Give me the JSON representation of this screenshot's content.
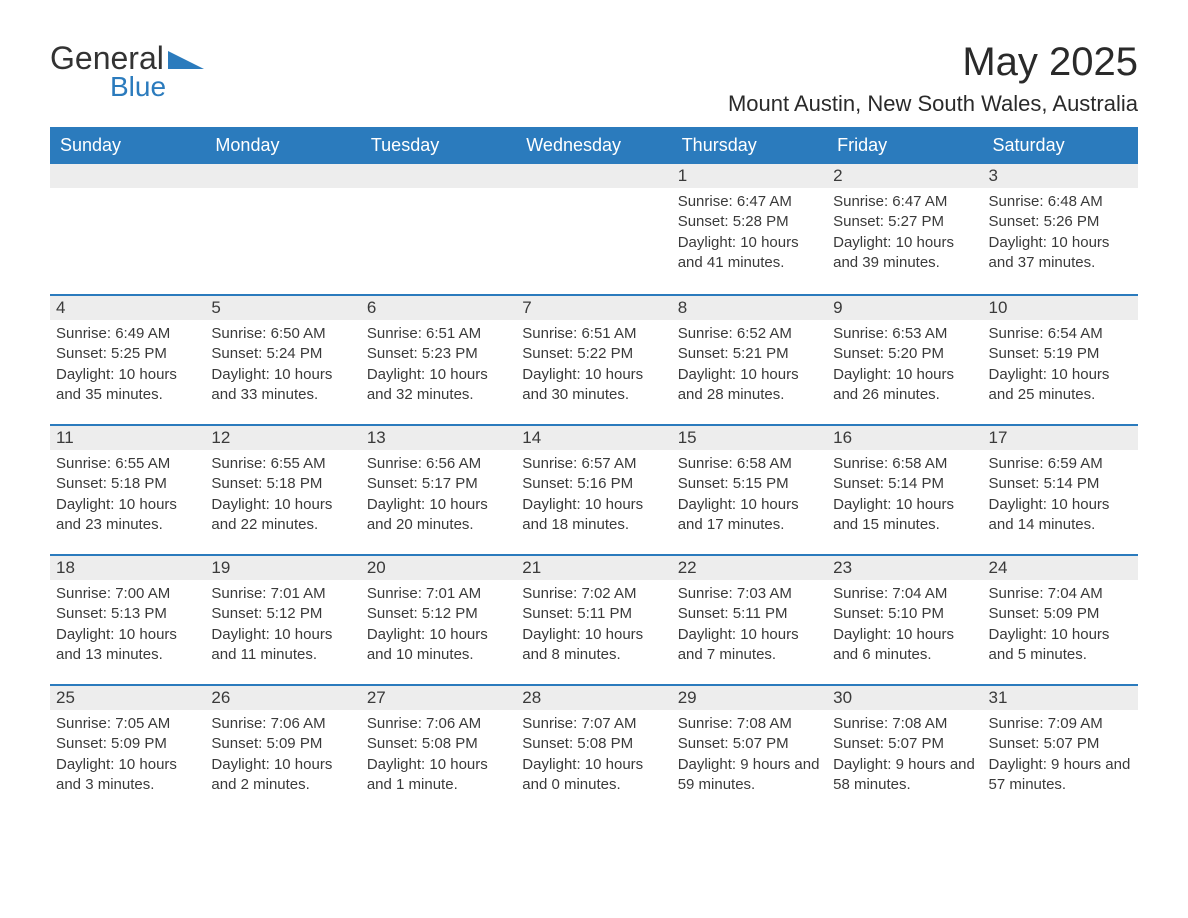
{
  "logo": {
    "text_general": "General",
    "text_blue": "Blue",
    "icon_color": "#2b7bbd"
  },
  "title": "May 2025",
  "location": "Mount Austin, New South Wales, Australia",
  "colors": {
    "header_bg": "#2b7bbd",
    "header_text": "#ffffff",
    "daynum_bg": "#ededed",
    "border_top": "#2b7bbd",
    "body_text": "#3a3a3a"
  },
  "weekdays": [
    "Sunday",
    "Monday",
    "Tuesday",
    "Wednesday",
    "Thursday",
    "Friday",
    "Saturday"
  ],
  "weeks": [
    [
      null,
      null,
      null,
      null,
      {
        "n": "1",
        "sr": "6:47 AM",
        "ss": "5:28 PM",
        "dl": "10 hours and 41 minutes."
      },
      {
        "n": "2",
        "sr": "6:47 AM",
        "ss": "5:27 PM",
        "dl": "10 hours and 39 minutes."
      },
      {
        "n": "3",
        "sr": "6:48 AM",
        "ss": "5:26 PM",
        "dl": "10 hours and 37 minutes."
      }
    ],
    [
      {
        "n": "4",
        "sr": "6:49 AM",
        "ss": "5:25 PM",
        "dl": "10 hours and 35 minutes."
      },
      {
        "n": "5",
        "sr": "6:50 AM",
        "ss": "5:24 PM",
        "dl": "10 hours and 33 minutes."
      },
      {
        "n": "6",
        "sr": "6:51 AM",
        "ss": "5:23 PM",
        "dl": "10 hours and 32 minutes."
      },
      {
        "n": "7",
        "sr": "6:51 AM",
        "ss": "5:22 PM",
        "dl": "10 hours and 30 minutes."
      },
      {
        "n": "8",
        "sr": "6:52 AM",
        "ss": "5:21 PM",
        "dl": "10 hours and 28 minutes."
      },
      {
        "n": "9",
        "sr": "6:53 AM",
        "ss": "5:20 PM",
        "dl": "10 hours and 26 minutes."
      },
      {
        "n": "10",
        "sr": "6:54 AM",
        "ss": "5:19 PM",
        "dl": "10 hours and 25 minutes."
      }
    ],
    [
      {
        "n": "11",
        "sr": "6:55 AM",
        "ss": "5:18 PM",
        "dl": "10 hours and 23 minutes."
      },
      {
        "n": "12",
        "sr": "6:55 AM",
        "ss": "5:18 PM",
        "dl": "10 hours and 22 minutes."
      },
      {
        "n": "13",
        "sr": "6:56 AM",
        "ss": "5:17 PM",
        "dl": "10 hours and 20 minutes."
      },
      {
        "n": "14",
        "sr": "6:57 AM",
        "ss": "5:16 PM",
        "dl": "10 hours and 18 minutes."
      },
      {
        "n": "15",
        "sr": "6:58 AM",
        "ss": "5:15 PM",
        "dl": "10 hours and 17 minutes."
      },
      {
        "n": "16",
        "sr": "6:58 AM",
        "ss": "5:14 PM",
        "dl": "10 hours and 15 minutes."
      },
      {
        "n": "17",
        "sr": "6:59 AM",
        "ss": "5:14 PM",
        "dl": "10 hours and 14 minutes."
      }
    ],
    [
      {
        "n": "18",
        "sr": "7:00 AM",
        "ss": "5:13 PM",
        "dl": "10 hours and 13 minutes."
      },
      {
        "n": "19",
        "sr": "7:01 AM",
        "ss": "5:12 PM",
        "dl": "10 hours and 11 minutes."
      },
      {
        "n": "20",
        "sr": "7:01 AM",
        "ss": "5:12 PM",
        "dl": "10 hours and 10 minutes."
      },
      {
        "n": "21",
        "sr": "7:02 AM",
        "ss": "5:11 PM",
        "dl": "10 hours and 8 minutes."
      },
      {
        "n": "22",
        "sr": "7:03 AM",
        "ss": "5:11 PM",
        "dl": "10 hours and 7 minutes."
      },
      {
        "n": "23",
        "sr": "7:04 AM",
        "ss": "5:10 PM",
        "dl": "10 hours and 6 minutes."
      },
      {
        "n": "24",
        "sr": "7:04 AM",
        "ss": "5:09 PM",
        "dl": "10 hours and 5 minutes."
      }
    ],
    [
      {
        "n": "25",
        "sr": "7:05 AM",
        "ss": "5:09 PM",
        "dl": "10 hours and 3 minutes."
      },
      {
        "n": "26",
        "sr": "7:06 AM",
        "ss": "5:09 PM",
        "dl": "10 hours and 2 minutes."
      },
      {
        "n": "27",
        "sr": "7:06 AM",
        "ss": "5:08 PM",
        "dl": "10 hours and 1 minute."
      },
      {
        "n": "28",
        "sr": "7:07 AM",
        "ss": "5:08 PM",
        "dl": "10 hours and 0 minutes."
      },
      {
        "n": "29",
        "sr": "7:08 AM",
        "ss": "5:07 PM",
        "dl": "9 hours and 59 minutes."
      },
      {
        "n": "30",
        "sr": "7:08 AM",
        "ss": "5:07 PM",
        "dl": "9 hours and 58 minutes."
      },
      {
        "n": "31",
        "sr": "7:09 AM",
        "ss": "5:07 PM",
        "dl": "9 hours and 57 minutes."
      }
    ]
  ],
  "labels": {
    "sunrise": "Sunrise:",
    "sunset": "Sunset:",
    "daylight": "Daylight:"
  }
}
